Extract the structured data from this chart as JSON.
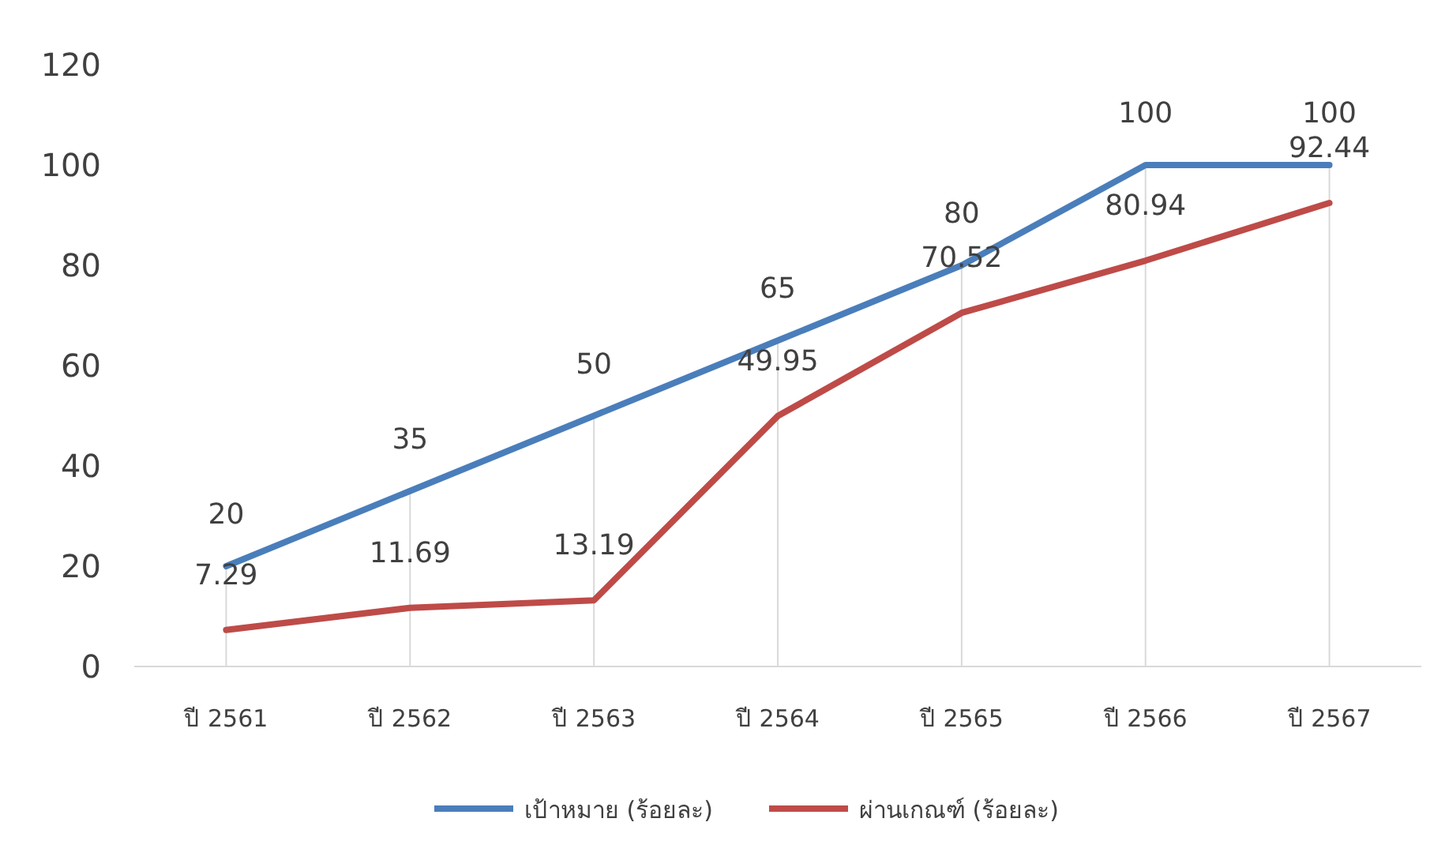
{
  "chart_data": {
    "type": "line",
    "categories": [
      "ปี 2561",
      "ปี 2562",
      "ปี 2563",
      "ปี 2564",
      "ปี 2565",
      "ปี 2566",
      "ปี 2567"
    ],
    "series": [
      {
        "name": "เป้าหมาย (ร้อยละ)",
        "color": "#4a7ebb",
        "values": [
          20,
          35,
          50,
          65,
          80,
          100,
          100
        ]
      },
      {
        "name": "ผ่านเกณฑ์ (ร้อยละ)",
        "color": "#be4b48",
        "values": [
          7.29,
          11.69,
          13.19,
          49.95,
          70.52,
          80.94,
          92.44
        ]
      }
    ],
    "ylim": [
      0,
      120
    ],
    "yticks": [
      0,
      20,
      40,
      60,
      80,
      100,
      120
    ],
    "grid": "x",
    "legend": "bottom",
    "data_labels": true,
    "marker": "none",
    "line_style": "solid"
  }
}
